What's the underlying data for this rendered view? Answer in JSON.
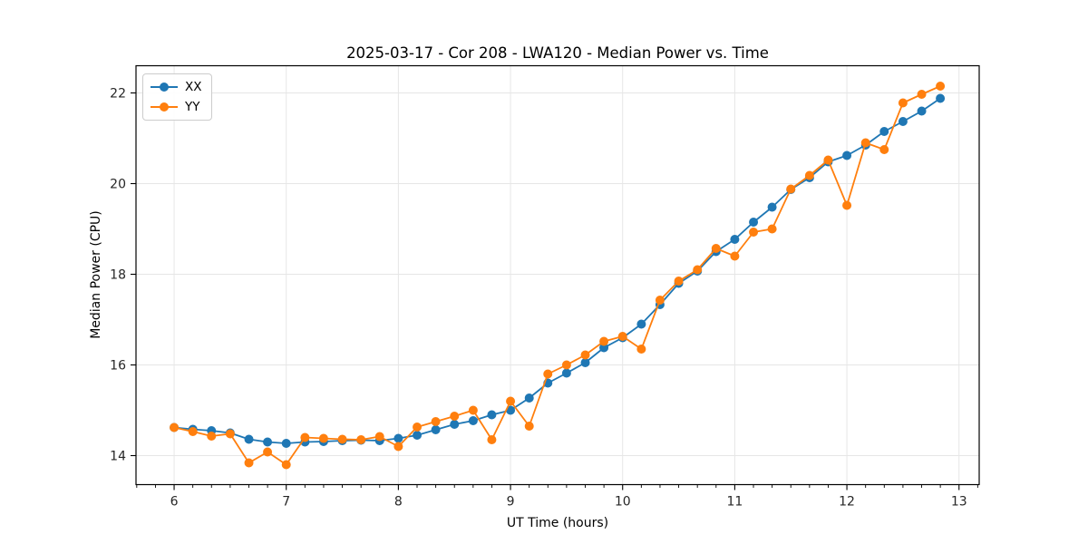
{
  "chart_data": {
    "type": "line",
    "title": "2025-03-17 - Cor 208 - LWA120 - Median Power vs. Time",
    "xlabel": "UT Time (hours)",
    "ylabel": "Median Power (CPU)",
    "x": [
      6.0,
      6.167,
      6.333,
      6.5,
      6.667,
      6.833,
      7.0,
      7.167,
      7.333,
      7.5,
      7.667,
      7.833,
      8.0,
      8.167,
      8.333,
      8.5,
      8.667,
      8.833,
      9.0,
      9.167,
      9.333,
      9.5,
      9.667,
      9.833,
      10.0,
      10.167,
      10.333,
      10.5,
      10.667,
      10.833,
      11.0,
      11.167,
      11.333,
      11.5,
      11.667,
      11.833,
      12.0,
      12.167,
      12.333,
      12.5,
      12.667,
      12.833
    ],
    "series": [
      {
        "name": "XX",
        "color": "#1f77b4",
        "values": [
          14.62,
          14.58,
          14.55,
          14.5,
          14.36,
          14.3,
          14.27,
          14.3,
          14.31,
          14.33,
          14.34,
          14.33,
          14.38,
          14.45,
          14.57,
          14.69,
          14.77,
          14.9,
          15.0,
          15.27,
          15.6,
          15.82,
          16.05,
          16.38,
          16.6,
          16.9,
          17.33,
          17.8,
          18.07,
          18.5,
          18.77,
          19.15,
          19.48,
          19.87,
          20.13,
          20.48,
          20.62,
          20.85,
          21.15,
          21.37,
          21.6,
          21.88
        ]
      },
      {
        "name": "YY",
        "color": "#ff7f0e",
        "values": [
          14.62,
          14.53,
          14.43,
          14.48,
          13.84,
          14.08,
          13.8,
          14.4,
          14.38,
          14.36,
          14.35,
          14.42,
          14.2,
          14.63,
          14.75,
          14.87,
          15.0,
          14.35,
          15.2,
          14.65,
          15.8,
          16.0,
          16.22,
          16.52,
          16.63,
          16.35,
          17.43,
          17.85,
          18.1,
          18.57,
          18.4,
          18.93,
          19.0,
          19.88,
          20.18,
          20.52,
          19.52,
          20.9,
          20.75,
          21.78,
          21.97,
          22.15
        ]
      }
    ],
    "xlim": [
      5.66,
      13.18
    ],
    "ylim": [
      13.36,
      22.6
    ],
    "xticks": [
      6,
      7,
      8,
      9,
      10,
      11,
      12,
      13
    ],
    "yticks": [
      14,
      16,
      18,
      20,
      22
    ],
    "x_minor_step": 0.166667,
    "grid": true,
    "legend_position": "upper left",
    "colors": {
      "grid": "#e6e6e6",
      "spine": "#000000",
      "tick": "#000000",
      "background": "#ffffff"
    }
  }
}
